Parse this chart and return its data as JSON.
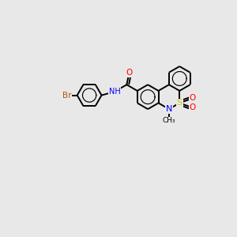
{
  "bg_color": "#e8e8e8",
  "bond_color": "#000000",
  "atom_colors": {
    "N": "#0000ff",
    "O": "#ff0000",
    "S": "#cccc00",
    "Br": "#b05a00",
    "C": "#000000"
  },
  "figsize": [
    3.0,
    3.0
  ],
  "dpi": 100,
  "xlim": [
    0,
    10
  ],
  "ylim": [
    0,
    10
  ]
}
